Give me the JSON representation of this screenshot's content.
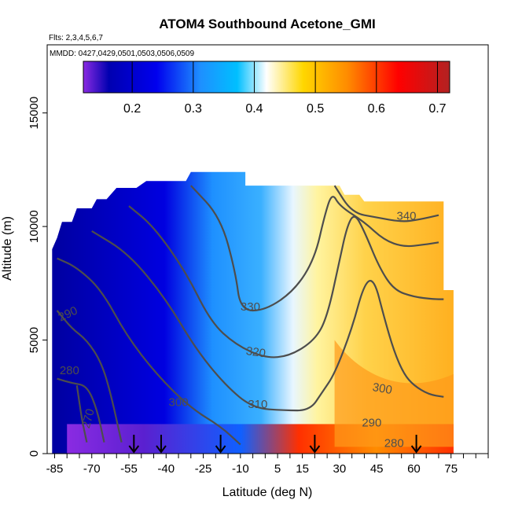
{
  "chart_data": {
    "type": "heatmap",
    "title": "ATOM4 Southbound Acetone_GMI",
    "subtitle_flights": "Flts: 2,3,4,5,6,7",
    "subtitle_dates": "MMDD: 0427,0429,0501,0503,0506,0509",
    "xlabel": "Latitude (deg N)",
    "ylabel": "Altitude (m)",
    "xlim": [
      -88,
      90
    ],
    "ylim": [
      0,
      18000
    ],
    "x_ticks": [
      -85,
      -70,
      -55,
      -40,
      -25,
      -10,
      5,
      15,
      30,
      45,
      60,
      75
    ],
    "y_ticks": [
      0,
      5000,
      10000,
      15000
    ],
    "colorbar": {
      "range": [
        0.12,
        0.72
      ],
      "ticks": [
        0.2,
        0.3,
        0.4,
        0.5,
        0.6,
        0.7
      ],
      "colors": [
        "#8a2be2",
        "#0000a8",
        "#0000ee",
        "#1e90ff",
        "#00bfff",
        "#ffffff",
        "#ffd700",
        "#ff8c00",
        "#ff0000",
        "#b22222"
      ]
    },
    "arrow_latitudes": [
      -53,
      -42,
      -18,
      20,
      61
    ],
    "contour_labels": [
      {
        "text": "290",
        "x": -79,
        "y": 6000,
        "angle": 25
      },
      {
        "text": "280",
        "x": -79,
        "y": 3500,
        "angle": 0
      },
      {
        "text": "270",
        "x": -70,
        "y": 1500,
        "angle": 75
      },
      {
        "text": "300",
        "x": -35,
        "y": 2100,
        "angle": 0
      },
      {
        "text": "310",
        "x": -3,
        "y": 2000,
        "angle": 0
      },
      {
        "text": "320",
        "x": -4,
        "y": 4300,
        "angle": -8
      },
      {
        "text": "330",
        "x": -6,
        "y": 6300,
        "angle": 0
      },
      {
        "text": "340",
        "x": 57,
        "y": 10300,
        "angle": 0
      },
      {
        "text": "300",
        "x": 47,
        "y": 2700,
        "angle": -10
      },
      {
        "text": "290",
        "x": 43,
        "y": 1200,
        "angle": 0
      },
      {
        "text": "280",
        "x": 52,
        "y": 300,
        "angle": 0
      }
    ],
    "theta_contours": [
      {
        "level": 270,
        "points": [
          [
            -76,
            3000
          ],
          [
            -74,
            1500
          ],
          [
            -72,
            500
          ]
        ]
      },
      {
        "level": 280,
        "points": [
          [
            -84,
            3300
          ],
          [
            -78,
            3100
          ],
          [
            -72,
            3000
          ],
          [
            -68,
            2000
          ],
          [
            -65,
            500
          ]
        ]
      },
      {
        "level": 290,
        "points": [
          [
            -84,
            6300
          ],
          [
            -78,
            5500
          ],
          [
            -72,
            5000
          ],
          [
            -66,
            4000
          ],
          [
            -62,
            2500
          ],
          [
            -58,
            500
          ]
        ]
      },
      {
        "level": 300,
        "points": [
          [
            -84,
            8600
          ],
          [
            -76,
            8200
          ],
          [
            -66,
            7200
          ],
          [
            -56,
            5200
          ],
          [
            -44,
            3500
          ],
          [
            -30,
            2000
          ],
          [
            -18,
            1200
          ],
          [
            -10,
            400
          ]
        ]
      },
      {
        "level": 310,
        "points": [
          [
            -70,
            9800
          ],
          [
            -55,
            8800
          ],
          [
            -40,
            6800
          ],
          [
            -28,
            4600
          ],
          [
            -16,
            3000
          ],
          [
            -5,
            2000
          ],
          [
            8,
            1900
          ],
          [
            18,
            1900
          ],
          [
            23,
            2700
          ],
          [
            28,
            3500
          ],
          [
            35,
            5500
          ],
          [
            40,
            7500
          ],
          [
            44,
            7700
          ],
          [
            48,
            6000
          ],
          [
            52,
            4500
          ],
          [
            56,
            3500
          ],
          [
            60,
            3000
          ],
          [
            66,
            2600
          ],
          [
            72,
            2500
          ]
        ]
      },
      {
        "level": 320,
        "points": [
          [
            -55,
            10900
          ],
          [
            -45,
            10000
          ],
          [
            -32,
            8000
          ],
          [
            -22,
            5800
          ],
          [
            -12,
            4800
          ],
          [
            0,
            4200
          ],
          [
            10,
            4300
          ],
          [
            20,
            5000
          ],
          [
            25,
            6000
          ],
          [
            30,
            8500
          ],
          [
            33,
            10000
          ],
          [
            36,
            10600
          ],
          [
            40,
            9800
          ],
          [
            46,
            8200
          ],
          [
            52,
            7200
          ],
          [
            60,
            6900
          ],
          [
            68,
            6800
          ],
          [
            72,
            6800
          ]
        ]
      },
      {
        "level": 330,
        "points": [
          [
            -30,
            11800
          ],
          [
            -18,
            10400
          ],
          [
            -12,
            8000
          ],
          [
            -10,
            6300
          ],
          [
            0,
            6300
          ],
          [
            12,
            7200
          ],
          [
            20,
            8600
          ],
          [
            24,
            10500
          ],
          [
            27,
            11500
          ],
          [
            30,
            10900
          ],
          [
            40,
            10200
          ],
          [
            48,
            9400
          ],
          [
            56,
            9100
          ],
          [
            64,
            9200
          ],
          [
            70,
            9300
          ]
        ]
      },
      {
        "level": 340,
        "points": [
          [
            28,
            11800
          ],
          [
            35,
            10600
          ],
          [
            45,
            10400
          ],
          [
            55,
            10200
          ],
          [
            62,
            10300
          ],
          [
            70,
            10500
          ]
        ]
      }
    ]
  }
}
